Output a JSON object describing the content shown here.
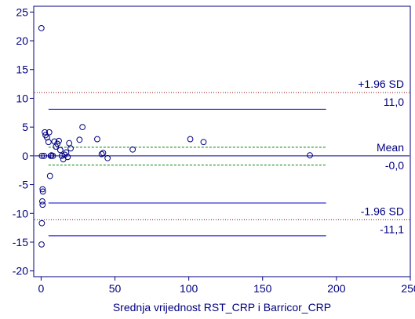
{
  "chart_data": {
    "type": "scatter",
    "title": "",
    "xlabel": "Srednja vrijednost RST_CRP i Barricor_CRP",
    "ylabel": "",
    "xlim": [
      -5,
      250
    ],
    "ylim": [
      -21,
      26
    ],
    "x_ticks": [
      0,
      50,
      100,
      150,
      200,
      250
    ],
    "y_ticks": [
      -20,
      -15,
      -10,
      -5,
      0,
      5,
      10,
      15,
      20,
      25
    ],
    "grid": false,
    "axis_color": "#000080",
    "point_color": "#000080",
    "points": [
      {
        "x": 0.2,
        "y": 22.2
      },
      {
        "x": 0.5,
        "y": 0.0
      },
      {
        "x": 1.0,
        "y": -5.8
      },
      {
        "x": 1.2,
        "y": -6.2
      },
      {
        "x": 0.8,
        "y": -7.9
      },
      {
        "x": 1.0,
        "y": -8.5
      },
      {
        "x": 0.5,
        "y": -11.7
      },
      {
        "x": 0.3,
        "y": -15.4
      },
      {
        "x": 2.0,
        "y": 0.0
      },
      {
        "x": 2.5,
        "y": 4.1
      },
      {
        "x": 3.0,
        "y": 3.6
      },
      {
        "x": 4.0,
        "y": 3.2
      },
      {
        "x": 5.0,
        "y": 2.4
      },
      {
        "x": 5.5,
        "y": 4.1
      },
      {
        "x": 6.0,
        "y": -3.5
      },
      {
        "x": 6.5,
        "y": 0.0
      },
      {
        "x": 7.0,
        "y": 0.1
      },
      {
        "x": 8.0,
        "y": 0.0
      },
      {
        "x": 9.0,
        "y": 2.5
      },
      {
        "x": 10.0,
        "y": 1.6
      },
      {
        "x": 11.0,
        "y": 2.1
      },
      {
        "x": 12.0,
        "y": 2.6
      },
      {
        "x": 13.0,
        "y": 1.0
      },
      {
        "x": 14.0,
        "y": 0.0
      },
      {
        "x": 15.0,
        "y": -0.6
      },
      {
        "x": 16.0,
        "y": 0.2
      },
      {
        "x": 17.0,
        "y": 0.6
      },
      {
        "x": 18.0,
        "y": -0.2
      },
      {
        "x": 19.0,
        "y": 2.2
      },
      {
        "x": 20.0,
        "y": 1.3
      },
      {
        "x": 26.0,
        "y": 2.8
      },
      {
        "x": 28.0,
        "y": 5.0
      },
      {
        "x": 38.0,
        "y": 2.9
      },
      {
        "x": 41.0,
        "y": 0.3
      },
      {
        "x": 42.0,
        "y": 0.5
      },
      {
        "x": 45.0,
        "y": -0.4
      },
      {
        "x": 62.0,
        "y": 1.1
      },
      {
        "x": 101.0,
        "y": 2.9
      },
      {
        "x": 110.0,
        "y": 2.4
      },
      {
        "x": 182.0,
        "y": 0.1
      }
    ],
    "reference_lines": [
      {
        "label": "+1.96 SD",
        "value_label": "11,0",
        "y": 11.0,
        "style": "dotted",
        "color": "#8b0000",
        "x_range": [
          -5,
          250
        ],
        "label_pos": "above",
        "value_pos": "below"
      },
      {
        "label": "",
        "value_label": "",
        "y": 8.1,
        "style": "solid",
        "color": "#0000cd",
        "x_range": [
          5,
          193
        ]
      },
      {
        "label": "",
        "value_label": "",
        "y": 1.5,
        "style": "dashed",
        "color": "#008000",
        "x_range": [
          5,
          193
        ]
      },
      {
        "label": "Mean",
        "value_label": "-0,0",
        "y": -0.0,
        "style": "solid",
        "color": "#00008b",
        "x_range": [
          -5,
          250
        ],
        "label_pos": "above",
        "value_pos": "below"
      },
      {
        "label": "",
        "value_label": "",
        "y": -1.6,
        "style": "dashed",
        "color": "#008000",
        "x_range": [
          5,
          193
        ]
      },
      {
        "label": "",
        "value_label": "",
        "y": -8.2,
        "style": "solid",
        "color": "#0000cd",
        "x_range": [
          5,
          193
        ]
      },
      {
        "label": "-1.96 SD",
        "value_label": "-11,1",
        "y": -11.1,
        "style": "dotted",
        "color": "#8b0000",
        "x_range": [
          -5,
          250
        ],
        "label_pos": "above",
        "value_pos": "below"
      },
      {
        "label": "",
        "value_label": "",
        "y": -13.9,
        "style": "solid",
        "color": "#0000cd",
        "x_range": [
          5,
          193
        ]
      }
    ]
  }
}
